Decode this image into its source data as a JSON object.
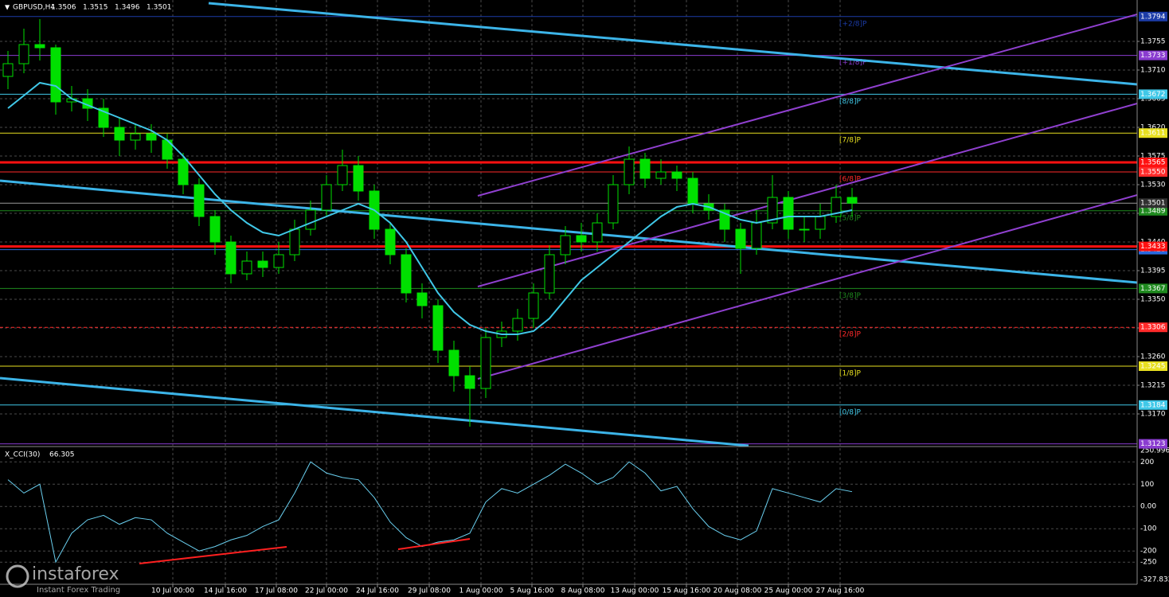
{
  "chart_data": {
    "type": "candlestick",
    "symbol": "GBPUSD,H4",
    "quote": [
      1.3506,
      1.3515,
      {
        "value": 1.3496,
        "label": "1.3496"
      },
      1.3501
    ],
    "open": [
      1.37,
      1.372,
      1.375,
      1.3745,
      1.366,
      1.3665,
      1.365,
      1.362,
      1.36,
      1.361,
      1.36,
      1.357,
      1.353,
      1.348,
      1.344,
      1.339,
      1.341,
      1.34,
      1.342,
      1.346,
      1.349,
      1.353,
      1.356,
      1.352,
      1.346,
      1.342,
      1.336,
      1.334,
      1.327,
      1.323,
      1.321,
      1.329,
      1.33,
      1.332,
      1.336,
      1.342,
      1.345,
      1.344,
      1.347,
      1.353,
      1.357,
      1.354,
      1.355,
      1.354,
      1.35,
      1.349,
      1.346,
      1.343,
      1.347,
      1.351,
      1.346,
      1.346,
      1.348,
      1.351
    ],
    "high": [
      1.374,
      1.3775,
      1.379,
      1.375,
      1.3685,
      1.368,
      1.3665,
      1.3635,
      1.3625,
      1.3625,
      1.361,
      1.358,
      1.354,
      1.349,
      1.345,
      1.3425,
      1.3425,
      1.344,
      1.3475,
      1.3505,
      1.3545,
      1.3585,
      1.3575,
      1.353,
      1.347,
      1.343,
      1.3375,
      1.335,
      1.3285,
      1.3245,
      1.3305,
      1.3315,
      1.3335,
      1.3375,
      1.3435,
      1.3465,
      1.347,
      1.3485,
      1.3545,
      1.359,
      1.358,
      1.357,
      1.356,
      1.355,
      1.3515,
      1.35,
      1.347,
      1.349,
      1.3545,
      1.352,
      1.348,
      1.35,
      1.353,
      1.3525
    ],
    "low": [
      1.368,
      1.3705,
      1.3725,
      1.364,
      1.3645,
      1.363,
      1.3605,
      1.3575,
      1.3585,
      1.358,
      1.3555,
      1.3515,
      1.3465,
      1.342,
      1.3375,
      1.338,
      1.3385,
      1.339,
      1.341,
      1.345,
      1.348,
      1.352,
      1.3505,
      1.3445,
      1.3405,
      1.3345,
      1.332,
      1.325,
      1.3205,
      1.315,
      1.3195,
      1.3275,
      1.3285,
      1.3305,
      1.335,
      1.3405,
      1.3425,
      1.3425,
      1.346,
      1.3515,
      1.3525,
      1.353,
      1.352,
      1.3485,
      1.3475,
      1.344,
      1.339,
      1.342,
      1.346,
      1.3445,
      1.344,
      1.3445,
      1.347,
      1.348
    ],
    "close": [
      1.372,
      1.375,
      1.3745,
      1.366,
      1.3665,
      1.365,
      1.362,
      1.36,
      1.361,
      1.36,
      1.357,
      1.353,
      1.348,
      1.344,
      1.339,
      1.341,
      1.34,
      1.342,
      1.346,
      1.349,
      1.353,
      1.356,
      1.352,
      1.346,
      1.342,
      1.336,
      1.334,
      1.327,
      1.323,
      1.321,
      1.329,
      1.33,
      1.332,
      1.336,
      1.342,
      1.345,
      1.344,
      1.347,
      1.353,
      1.357,
      1.354,
      1.355,
      1.354,
      1.35,
      1.349,
      1.346,
      1.343,
      1.347,
      1.351,
      1.346,
      1.346,
      1.348,
      1.351,
      1.3501
    ],
    "ma": [
      1.365,
      1.367,
      1.369,
      1.3685,
      1.3665,
      1.3655,
      1.3645,
      1.3635,
      1.3625,
      1.3615,
      1.36,
      1.3575,
      1.3545,
      1.3515,
      1.349,
      1.347,
      1.3455,
      1.345,
      1.346,
      1.347,
      1.348,
      1.349,
      1.35,
      1.349,
      1.347,
      1.344,
      1.34,
      1.336,
      1.333,
      1.331,
      1.33,
      1.3295,
      1.3295,
      1.33,
      1.332,
      1.335,
      1.338,
      1.34,
      1.342,
      1.344,
      1.346,
      1.348,
      1.3495,
      1.35,
      1.3495,
      1.3485,
      1.3475,
      1.347,
      1.3475,
      1.348,
      1.348,
      1.348,
      1.3485,
      1.349
    ],
    "candle_color": "#00e000",
    "ma_color": "#40c8e8",
    "ylim": [
      1.312,
      1.382
    ],
    "yticks": [
      1.3755,
      {
        "value": 1.371,
        "label": "1.3710"
      },
      1.3665,
      {
        "value": 1.362,
        "label": "1.3620"
      },
      1.3575,
      {
        "value": 1.353,
        "label": "1.3530"
      },
      1.3485,
      {
        "value": 1.344,
        "label": "1.3440"
      },
      1.3395,
      {
        "value": 1.335,
        "label": "1.3350"
      },
      1.3305,
      {
        "value": 1.326,
        "label": "1.3260"
      },
      1.3215,
      {
        "value": 1.317,
        "label": "1.3170"
      }
    ],
    "xticks": [
      {
        "value": 10.35,
        "label": "10 Jul 00:00"
      },
      {
        "value": 13.65,
        "label": "14 Jul 16:00"
      },
      {
        "value": 16.85,
        "label": "17 Jul 08:00"
      },
      {
        "value": 20,
        "label": "22 Jul 00:00"
      },
      {
        "value": 23.2,
        "label": "24 Jul 16:00"
      },
      {
        "value": 26.45,
        "label": "29 Jul 08:00"
      },
      {
        "value": 29.7,
        "label": "1 Aug 00:00"
      },
      {
        "value": 32.9,
        "label": "5 Aug 16:00"
      },
      {
        "value": 36.1,
        "label": "8 Aug 08:00"
      },
      {
        "value": 39.35,
        "label": "13 Aug 00:00"
      },
      {
        "value": 42.6,
        "label": "15 Aug 16:00"
      },
      {
        "value": 45.8,
        "label": "20 Aug 08:00"
      },
      {
        "value": 49,
        "label": "25 Aug 00:00"
      },
      {
        "value": 52.25,
        "label": "27 Aug 16:00"
      }
    ],
    "grid": true,
    "levels": [
      {
        "name": "[+2/8]P",
        "price": 1.3794,
        "color": "#1c3ca8"
      },
      {
        "name": "[+1/8]P",
        "price": 1.3733,
        "color": "#8a3cd0"
      },
      {
        "name": "[8/8]P",
        "price": 1.3672,
        "color": "#40c8e8"
      },
      {
        "name": "[7/8]P",
        "price": 1.3611,
        "color": "#e8e020"
      },
      {
        "name": "[6/8]P",
        "price": {
          "value": 1.355,
          "label": "1.3550"
        },
        "color": "#ff2a2a"
      },
      {
        "name": "[5/8]P",
        "price": 1.3489,
        "color": "#1f8a1f"
      },
      {
        "price": 1.3428,
        "color": "#2a6ae0"
      },
      {
        "name": "[3/8]P",
        "price": 1.3367,
        "color": "#1f8a1f"
      },
      {
        "name": "[2/8]P",
        "price": 1.3306,
        "color": "#ff2a2a"
      },
      {
        "name": "[1/8]P",
        "price": 1.3245,
        "color": "#e8e020"
      },
      {
        "name": "[0/8]P",
        "price": 1.3184,
        "color": "#40c8e8"
      },
      {
        "price": 1.3123,
        "color": "#8a3cd0"
      }
    ],
    "lines": [
      {
        "price": 1.3565,
        "color": "#ff1010"
      },
      {
        "price": 1.3433,
        "color": "#ff1010"
      }
    ],
    "current": {
      "price": 1.3501,
      "color": "#9a9a9a"
    },
    "indicator": {
      "title": "X_CCI(30)",
      "last": 66.305,
      "color": "#6ad0f0",
      "values": [
        120,
        60,
        100,
        -250,
        -120,
        -60,
        -40,
        -80,
        -50,
        -60,
        -120,
        -160,
        -200,
        -180,
        -150,
        -130,
        -90,
        -60,
        60,
        200,
        150,
        130,
        120,
        40,
        -70,
        -140,
        -180,
        -160,
        -150,
        -120,
        20,
        80,
        60,
        100,
        140,
        190,
        150,
        100,
        130,
        200,
        150,
        70,
        90,
        -10,
        -90,
        -130,
        -150,
        -110,
        80,
        60,
        40,
        20,
        80,
        66.305
      ],
      "ylim": [
        -327.832,
        250.9969
      ],
      "yticks": [
        250.9969,
        200,
        100,
        {
          "value": 0,
          "label": "0.00"
        },
        -100,
        -200,
        -250,
        -327.832
      ]
    },
    "watermark": {
      "brand": "instaforex",
      "tagline": "Instant Forex Trading"
    }
  }
}
